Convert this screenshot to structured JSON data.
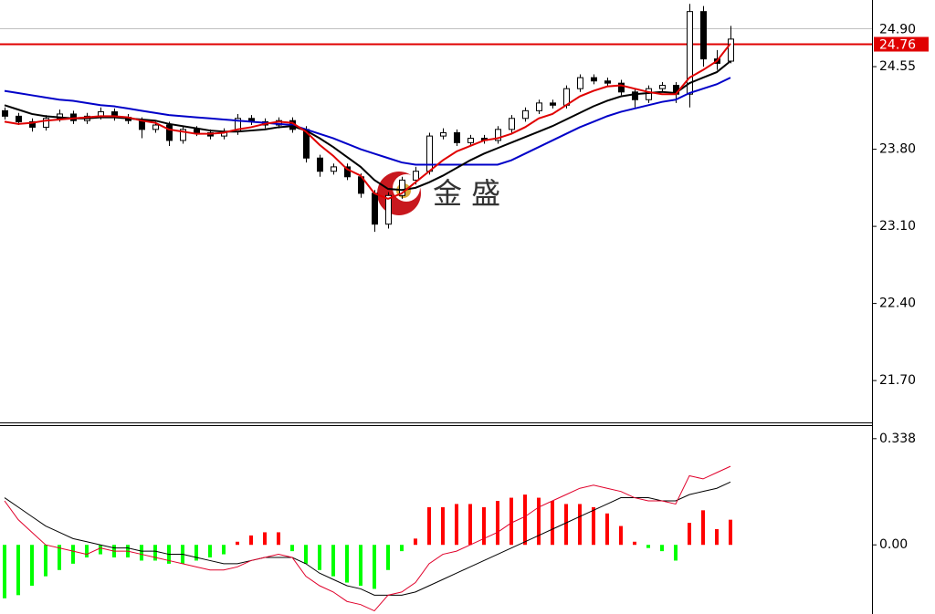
{
  "chart_data": [
    {
      "type": "candlestick",
      "open": [
        24.15,
        24.1,
        24.05,
        24.0,
        24.08,
        24.12,
        24.06,
        24.1,
        24.14,
        24.09,
        24.06,
        23.98,
        24.02,
        23.88,
        23.98,
        23.95,
        23.92,
        23.96,
        24.08,
        24.05,
        24.02,
        24.06,
        23.98,
        23.72,
        23.6,
        23.64,
        23.55,
        23.4,
        23.12,
        23.38,
        23.52,
        23.6,
        23.92,
        23.95,
        23.86,
        23.9,
        23.88,
        23.98,
        24.08,
        24.15,
        24.22,
        24.2,
        24.35,
        24.45,
        24.42,
        24.4,
        24.32,
        24.25,
        24.35,
        24.38,
        24.3,
        25.05,
        24.62,
        24.6
      ],
      "high": [
        24.18,
        24.13,
        24.08,
        24.11,
        24.16,
        24.15,
        24.13,
        24.18,
        24.17,
        24.12,
        24.09,
        24.05,
        24.05,
        24.01,
        24.01,
        23.98,
        23.99,
        24.12,
        24.11,
        24.08,
        24.09,
        24.09,
        24.01,
        23.75,
        23.67,
        23.67,
        23.58,
        23.43,
        23.41,
        23.55,
        23.64,
        23.95,
        23.99,
        23.98,
        23.93,
        23.93,
        24.01,
        24.11,
        24.18,
        24.25,
        24.25,
        24.38,
        24.48,
        24.48,
        24.45,
        24.43,
        24.35,
        24.38,
        24.41,
        24.41,
        25.12,
        25.1,
        24.7,
        24.92
      ],
      "low": [
        24.07,
        24.02,
        23.96,
        23.97,
        24.05,
        24.03,
        24.03,
        24.07,
        24.06,
        24.03,
        23.9,
        23.95,
        23.83,
        23.85,
        23.92,
        23.89,
        23.89,
        23.93,
        24.02,
        23.99,
        23.99,
        23.95,
        23.68,
        23.55,
        23.57,
        23.52,
        23.36,
        23.05,
        23.08,
        23.35,
        23.48,
        23.57,
        23.89,
        23.83,
        23.83,
        23.85,
        23.85,
        23.95,
        24.05,
        24.12,
        24.17,
        24.17,
        24.32,
        24.39,
        24.37,
        24.29,
        24.18,
        24.22,
        24.32,
        24.22,
        24.18,
        24.55,
        24.52,
        24.58
      ],
      "close": [
        24.1,
        24.05,
        24.0,
        24.08,
        24.12,
        24.06,
        24.1,
        24.14,
        24.09,
        24.06,
        23.98,
        24.02,
        23.88,
        23.98,
        23.95,
        23.92,
        23.96,
        24.08,
        24.05,
        24.02,
        24.06,
        23.98,
        23.72,
        23.6,
        23.64,
        23.55,
        23.4,
        23.12,
        23.38,
        23.52,
        23.6,
        23.92,
        23.95,
        23.86,
        23.9,
        23.88,
        23.98,
        24.08,
        24.15,
        24.22,
        24.2,
        24.35,
        24.45,
        24.42,
        24.4,
        24.32,
        24.25,
        24.35,
        24.38,
        24.3,
        25.05,
        24.62,
        24.58,
        24.8
      ],
      "up_color": "#ffffff",
      "down_color": "#000000",
      "overlays": [
        {
          "color": "#0000c8",
          "values": [
            24.33,
            24.31,
            24.29,
            24.27,
            24.25,
            24.24,
            24.22,
            24.2,
            24.19,
            24.17,
            24.15,
            24.13,
            24.11,
            24.1,
            24.09,
            24.08,
            24.07,
            24.06,
            24.05,
            24.04,
            24.03,
            24.02,
            23.98,
            23.94,
            23.9,
            23.85,
            23.8,
            23.76,
            23.72,
            23.68,
            23.66,
            23.66,
            23.66,
            23.66,
            23.66,
            23.66,
            23.66,
            23.7,
            23.76,
            23.82,
            23.88,
            23.94,
            24.0,
            24.05,
            24.1,
            24.14,
            24.17,
            24.2,
            24.23,
            24.25,
            24.31,
            24.35,
            24.39,
            24.45
          ]
        },
        {
          "color": "#000000",
          "values": [
            24.2,
            24.16,
            24.12,
            24.1,
            24.09,
            24.08,
            24.08,
            24.09,
            24.09,
            24.08,
            24.07,
            24.06,
            24.03,
            24.01,
            23.99,
            23.97,
            23.96,
            23.96,
            23.97,
            23.98,
            24.0,
            24.01,
            23.97,
            23.9,
            23.82,
            23.73,
            23.64,
            23.52,
            23.44,
            23.43,
            23.45,
            23.5,
            23.56,
            23.63,
            23.7,
            23.76,
            23.81,
            23.86,
            23.91,
            23.96,
            24.01,
            24.07,
            24.13,
            24.19,
            24.24,
            24.28,
            24.3,
            24.31,
            24.32,
            24.31,
            24.4,
            24.45,
            24.5,
            24.6
          ]
        },
        {
          "color": "#e00000",
          "values": [
            24.05,
            24.03,
            24.04,
            24.06,
            24.07,
            24.08,
            24.09,
            24.1,
            24.1,
            24.09,
            24.06,
            24.04,
            23.98,
            23.96,
            23.94,
            23.94,
            23.95,
            23.98,
            24.0,
            24.03,
            24.05,
            24.04,
            23.96,
            23.84,
            23.74,
            23.62,
            23.56,
            23.4,
            23.35,
            23.4,
            23.5,
            23.6,
            23.7,
            23.78,
            23.83,
            23.88,
            23.9,
            23.94,
            24.0,
            24.08,
            24.12,
            24.2,
            24.28,
            24.33,
            24.37,
            24.38,
            24.35,
            24.32,
            24.3,
            24.3,
            24.45,
            24.52,
            24.6,
            24.76
          ]
        }
      ],
      "ylim": [
        21.32,
        25.155
      ],
      "yticks": [
        24.55,
        {
          "value": 23.8,
          "label": "23.80"
        },
        {
          "value": 23.1,
          "label": "23.10"
        },
        {
          "value": 22.4,
          "label": "22.40"
        },
        {
          "value": 21.7,
          "label": "21.70"
        }
      ],
      "price_lines": [
        {
          "value": 24.9,
          "label": "24.90",
          "color": "#c0c0c0",
          "label_bg": "#ffffff",
          "label_color": "#000000"
        },
        {
          "value": 24.76,
          "color": "#e00000",
          "label_bg": "#e00000",
          "label_color": "#ffffff"
        }
      ],
      "watermark": "金 盛"
    },
    {
      "type": "macd",
      "histogram": [
        -0.17,
        -0.16,
        -0.13,
        -0.1,
        -0.08,
        -0.06,
        -0.04,
        -0.03,
        -0.04,
        -0.04,
        -0.05,
        -0.05,
        -0.06,
        -0.06,
        -0.05,
        -0.04,
        -0.03,
        0.01,
        0.03,
        0.04,
        0.04,
        -0.02,
        -0.06,
        -0.08,
        -0.1,
        -0.12,
        -0.13,
        -0.14,
        -0.08,
        -0.02,
        0.02,
        0.12,
        0.12,
        0.13,
        0.13,
        0.12,
        0.14,
        0.15,
        0.16,
        0.15,
        0.14,
        0.13,
        0.13,
        0.12,
        0.1,
        0.06,
        0.01,
        -0.01,
        -0.02,
        -0.05,
        0.07,
        0.11,
        0.05,
        0.08
      ],
      "up_color": "#ff0000",
      "down_color": "#00ff00",
      "lines": [
        {
          "color": "#000000",
          "values": [
            0.15,
            0.12,
            0.09,
            0.06,
            0.04,
            0.02,
            0.01,
            0.0,
            -0.01,
            -0.01,
            -0.02,
            -0.02,
            -0.03,
            -0.03,
            -0.04,
            -0.05,
            -0.06,
            -0.06,
            -0.05,
            -0.04,
            -0.04,
            -0.04,
            -0.06,
            -0.09,
            -0.11,
            -0.13,
            -0.14,
            -0.16,
            -0.16,
            -0.16,
            -0.15,
            -0.13,
            -0.11,
            -0.09,
            -0.07,
            -0.05,
            -0.03,
            -0.01,
            0.01,
            0.03,
            0.05,
            0.07,
            0.09,
            0.11,
            0.13,
            0.15,
            0.15,
            0.15,
            0.14,
            0.14,
            0.16,
            0.17,
            0.18,
            0.2
          ]
        },
        {
          "color": "#e0002a",
          "values": [
            0.14,
            0.08,
            0.04,
            0.0,
            -0.01,
            -0.02,
            -0.03,
            -0.01,
            -0.02,
            -0.02,
            -0.03,
            -0.04,
            -0.05,
            -0.06,
            -0.07,
            -0.08,
            -0.08,
            -0.07,
            -0.05,
            -0.04,
            -0.03,
            -0.04,
            -0.1,
            -0.13,
            -0.15,
            -0.18,
            -0.19,
            -0.21,
            -0.16,
            -0.15,
            -0.12,
            -0.06,
            -0.03,
            -0.02,
            0.0,
            0.02,
            0.04,
            0.07,
            0.09,
            0.12,
            0.14,
            0.16,
            0.18,
            0.19,
            0.18,
            0.17,
            0.15,
            0.14,
            0.14,
            0.13,
            0.22,
            0.21,
            0.23,
            0.25
          ]
        }
      ],
      "ylim": [
        -0.22,
        0.381
      ],
      "yticks": [
        0.338,
        {
          "value": 0,
          "label": "0.00"
        }
      ]
    }
  ]
}
